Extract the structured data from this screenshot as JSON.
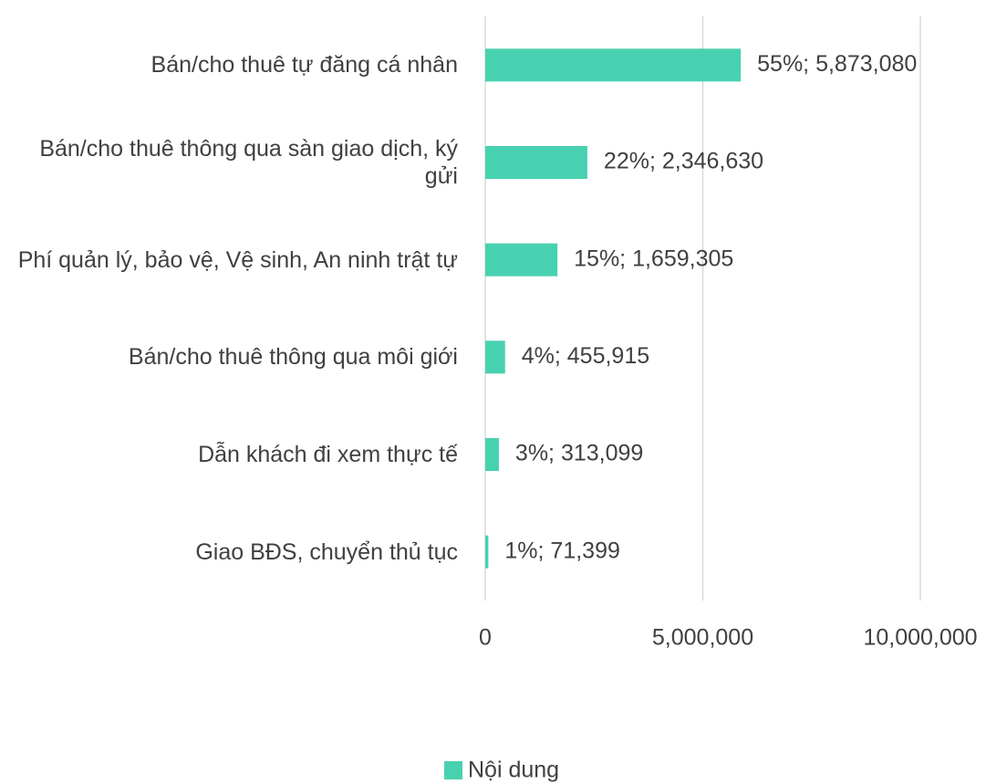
{
  "chart_data": {
    "type": "bar",
    "orientation": "horizontal",
    "categories": [
      "Bán/cho thuê tự đăng cá nhân",
      "Bán/cho thuê thông qua sàn giao dịch, ký gửi",
      "Phí quản lý, bảo vệ, Vệ sinh, An ninh trật tự",
      "Bán/cho thuê thông qua môi giới",
      "Dẫn khách đi xem thực tế",
      "Giao BĐS, chuyển thủ tục"
    ],
    "series": [
      {
        "name": "Nội dung",
        "color": "#48d1b0",
        "values": [
          5873080,
          2346630,
          1659305,
          455915,
          313099,
          71399
        ],
        "value_labels": [
          "55%; 5,873,080",
          "22%; 2,346,630",
          "15%; 1,659,305",
          "4%; 455,915",
          "3%; 313,099",
          "1%; 71,399"
        ]
      }
    ],
    "xlim": [
      0,
      10000000
    ],
    "xticks": [
      0,
      {
        "value": 5000000,
        "label": "5,000,000"
      },
      {
        "value": 10000000,
        "label": "10,000,000"
      }
    ],
    "grid": true,
    "legend": "bottom"
  }
}
